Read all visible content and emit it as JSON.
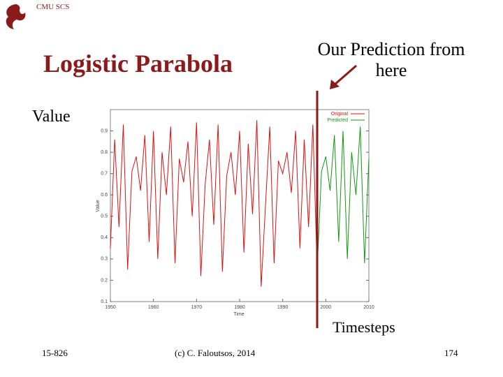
{
  "header": {
    "logo_text": "CMU SCS"
  },
  "slide_title": "Logistic Parabola",
  "annotation": "Our Prediction from here",
  "side_label": "Value",
  "bottom_label": "Timesteps",
  "footer": {
    "left": "15-826",
    "center": "(c) C. Faloutsos, 2014",
    "right": "174"
  },
  "chart_data": {
    "type": "line",
    "x_label": "Time",
    "y_label": "Value",
    "x": [
      1950,
      1951,
      1952,
      1953,
      1954,
      1955,
      1956,
      1957,
      1958,
      1959,
      1960,
      1961,
      1962,
      1963,
      1964,
      1965,
      1966,
      1967,
      1968,
      1969,
      1970,
      1971,
      1972,
      1973,
      1974,
      1975,
      1976,
      1977,
      1978,
      1979,
      1980,
      1981,
      1982,
      1983,
      1984,
      1985,
      1986,
      1987,
      1988,
      1989,
      1990,
      1991,
      1992,
      1993,
      1994,
      1995,
      1996,
      1997,
      1998,
      1999,
      2000,
      2001,
      2002,
      2003,
      2004,
      2005,
      2006,
      2007,
      2008,
      2009,
      2010
    ],
    "series": [
      {
        "name": "Original",
        "color": "#dd1111",
        "values": [
          0.35,
          0.86,
          0.45,
          0.93,
          0.25,
          0.71,
          0.78,
          0.62,
          0.88,
          0.38,
          0.9,
          0.3,
          0.8,
          0.6,
          0.92,
          0.28,
          0.77,
          0.66,
          0.85,
          0.5,
          0.94,
          0.22,
          0.65,
          0.86,
          0.46,
          0.93,
          0.24,
          0.69,
          0.8,
          0.6,
          0.9,
          0.33,
          0.84,
          0.51,
          0.95,
          0.17,
          0.55,
          0.92,
          0.28,
          0.76,
          0.7,
          0.8,
          0.61,
          0.9,
          0.35,
          0.86,
          0.45,
          0.93,
          0.25,
          null,
          null,
          null,
          null,
          null,
          null,
          null,
          null,
          null,
          null,
          null,
          null
        ]
      },
      {
        "name": "Predicted",
        "color": "#119911",
        "values": [
          null,
          null,
          null,
          null,
          null,
          null,
          null,
          null,
          null,
          null,
          null,
          null,
          null,
          null,
          null,
          null,
          null,
          null,
          null,
          null,
          null,
          null,
          null,
          null,
          null,
          null,
          null,
          null,
          null,
          null,
          null,
          null,
          null,
          null,
          null,
          null,
          null,
          null,
          null,
          null,
          null,
          null,
          null,
          null,
          null,
          null,
          null,
          null,
          0.25,
          0.71,
          0.78,
          0.62,
          0.88,
          0.38,
          0.9,
          0.3,
          0.8,
          0.6,
          0.92,
          0.28,
          0.77
        ]
      }
    ],
    "xlim": [
      1950,
      2010
    ],
    "ylim": [
      0.1,
      1
    ],
    "xticks": [
      1950,
      1960,
      1970,
      1980,
      1990,
      2000,
      2010
    ],
    "yticks": [
      0.1,
      0.2,
      0.3,
      0.4,
      0.5,
      0.6,
      0.7,
      0.8,
      0.9
    ],
    "legend": "upper right"
  }
}
